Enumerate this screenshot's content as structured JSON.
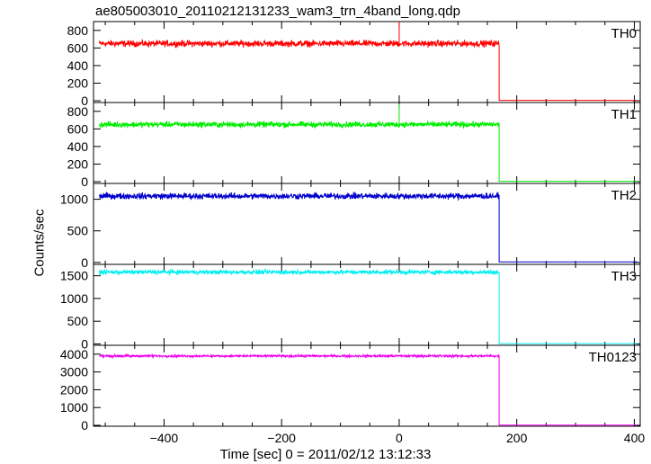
{
  "chart_data": {
    "type": "line",
    "title": "ae805003010_20110212131233_wam3_trn_4band_long.qdp",
    "xlabel": "Time [sec] 0 = 2011/02/12 13:12:33",
    "ylabel": "Counts/sec",
    "xlim": [
      -520,
      410
    ],
    "xticks": [
      -400,
      -200,
      0,
      200,
      400
    ],
    "drop_time": 170,
    "panels": [
      {
        "name": "TH0",
        "color": "#ff0000",
        "ylim": [
          -20,
          900
        ],
        "yticks": [
          0,
          200,
          400,
          600,
          800
        ],
        "level": 650,
        "noise": 22,
        "after": 5,
        "spike": {
          "x": 0,
          "y": 900
        }
      },
      {
        "name": "TH1",
        "color": "#00ee00",
        "ylim": [
          -20,
          900
        ],
        "yticks": [
          0,
          200,
          400,
          600,
          800
        ],
        "level": 650,
        "noise": 20,
        "after": 5,
        "spike": {
          "x": 0,
          "y": 880
        }
      },
      {
        "name": "TH2",
        "color": "#0000cc",
        "ylim": [
          -30,
          1250
        ],
        "yticks": [
          0,
          500,
          1000
        ],
        "level": 1050,
        "noise": 30,
        "after": 8,
        "spike": null
      },
      {
        "name": "TH3",
        "color": "#00eeee",
        "ylim": [
          -30,
          1750
        ],
        "yticks": [
          0,
          500,
          1000,
          1500
        ],
        "level": 1580,
        "noise": 30,
        "after": 8,
        "spike": null
      },
      {
        "name": "TH0123",
        "color": "#ee00ee",
        "ylim": [
          -50,
          4500
        ],
        "yticks": [
          0,
          1000,
          2000,
          3000,
          4000
        ],
        "level": 3900,
        "noise": 40,
        "after": 10,
        "spike": null
      }
    ]
  }
}
